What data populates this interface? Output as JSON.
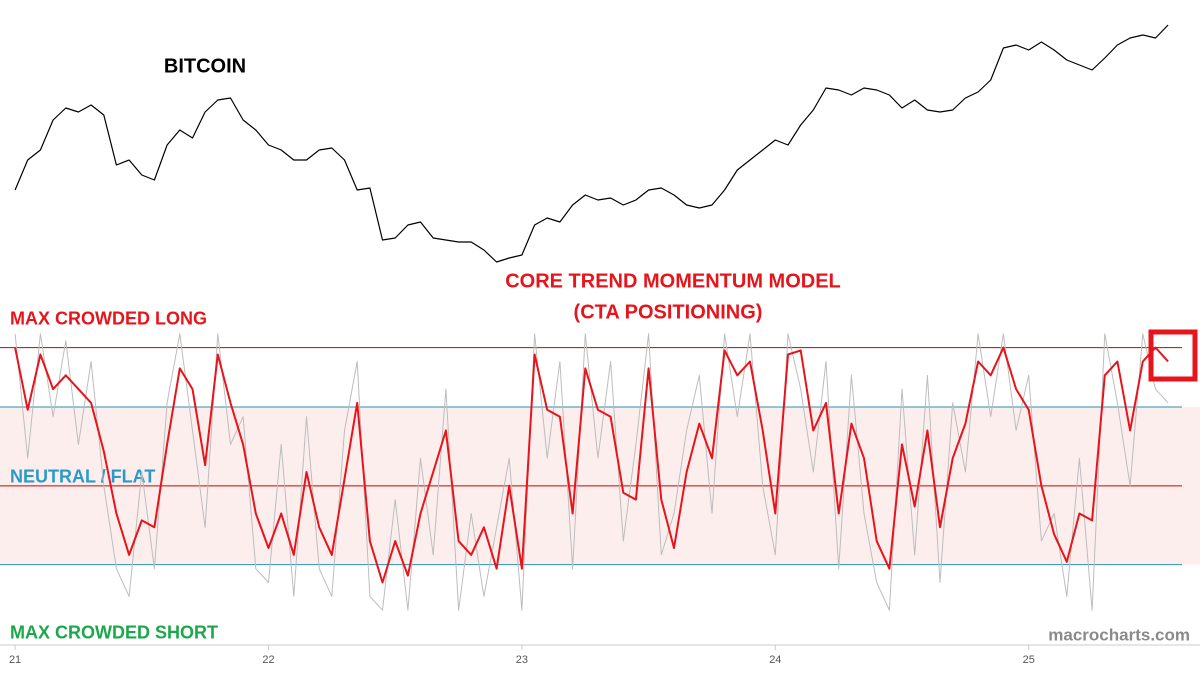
{
  "chart_data": [
    {
      "type": "line",
      "title": "BITCOIN",
      "color": "#000000",
      "xlim": [
        20.98,
        25.66
      ],
      "ylim": [
        0,
        250
      ],
      "x": [
        21,
        21.05,
        21.1,
        21.15,
        21.2,
        21.25,
        21.3,
        21.35,
        21.4,
        21.45,
        21.5,
        21.55,
        21.6,
        21.65,
        21.7,
        21.75,
        21.8,
        21.85,
        21.9,
        21.95,
        22,
        22.05,
        22.1,
        22.15,
        22.2,
        22.25,
        22.3,
        22.35,
        22.4,
        22.45,
        22.5,
        22.55,
        22.6,
        22.65,
        22.7,
        22.75,
        22.8,
        22.85,
        22.9,
        22.95,
        23,
        23.05,
        23.1,
        23.15,
        23.2,
        23.25,
        23.3,
        23.35,
        23.4,
        23.45,
        23.5,
        23.55,
        23.6,
        23.65,
        23.7,
        23.75,
        23.8,
        23.85,
        23.9,
        23.95,
        24,
        24.05,
        24.1,
        24.15,
        24.2,
        24.25,
        24.3,
        24.35,
        24.4,
        24.45,
        24.5,
        24.55,
        24.6,
        24.65,
        24.7,
        24.75,
        24.8,
        24.85,
        24.9,
        24.95,
        25,
        25.05,
        25.1,
        25.15,
        25.2,
        25.25,
        25.3,
        25.35,
        25.4,
        25.45,
        25.5,
        25.55
      ],
      "values": [
        80,
        110,
        120,
        150,
        162,
        158,
        165,
        155,
        105,
        110,
        95,
        90,
        125,
        140,
        132,
        158,
        170,
        172,
        150,
        140,
        125,
        120,
        110,
        110,
        120,
        122,
        110,
        80,
        82,
        30,
        32,
        45,
        48,
        32,
        30,
        28,
        28,
        20,
        8,
        12,
        15,
        45,
        52,
        48,
        65,
        75,
        70,
        72,
        65,
        70,
        80,
        82,
        75,
        65,
        62,
        65,
        80,
        100,
        110,
        120,
        130,
        125,
        145,
        160,
        182,
        180,
        175,
        182,
        180,
        175,
        162,
        170,
        160,
        158,
        160,
        172,
        178,
        190,
        222,
        225,
        220,
        228,
        220,
        210,
        205,
        200,
        212,
        225,
        232,
        235,
        232,
        245
      ]
    },
    {
      "type": "line",
      "title": "CORE TREND MOMENTUM MODEL",
      "subtitle": "(CTA POSITIONING)",
      "xlim": [
        20.98,
        25.66
      ],
      "ylim": [
        -1,
        1.2
      ],
      "xticks": [
        21,
        22,
        23,
        24,
        25
      ],
      "band": {
        "range": [
          -0.57,
          0.57
        ],
        "color": "#fdeeee"
      },
      "reference_lines": [
        {
          "value": 1,
          "color": "#cc0000",
          "label": "MAX CROWDED LONG",
          "label_color": "#e8141b"
        },
        {
          "value": 0.57,
          "color": "#2a8fb5"
        },
        {
          "value": 0,
          "color": "#cc0000",
          "label": "NEUTRAL / FLAT",
          "label_color": "#2a9bc8"
        },
        {
          "value": -0.57,
          "color": "#2a8fb5",
          "label": "MAX CROWDED SHORT",
          "label_color": "#1aa84a"
        }
      ],
      "x": [
        21,
        21.05,
        21.1,
        21.15,
        21.2,
        21.25,
        21.3,
        21.35,
        21.4,
        21.45,
        21.5,
        21.55,
        21.6,
        21.65,
        21.7,
        21.75,
        21.8,
        21.85,
        21.9,
        21.95,
        22,
        22.05,
        22.1,
        22.15,
        22.2,
        22.25,
        22.3,
        22.35,
        22.4,
        22.45,
        22.5,
        22.55,
        22.6,
        22.65,
        22.7,
        22.75,
        22.8,
        22.85,
        22.9,
        22.95,
        23,
        23.05,
        23.1,
        23.15,
        23.2,
        23.25,
        23.3,
        23.35,
        23.4,
        23.45,
        23.5,
        23.55,
        23.6,
        23.65,
        23.7,
        23.75,
        23.8,
        23.85,
        23.9,
        23.95,
        24,
        24.05,
        24.1,
        24.15,
        24.2,
        24.25,
        24.3,
        24.35,
        24.4,
        24.45,
        24.5,
        24.55,
        24.6,
        24.65,
        24.7,
        24.75,
        24.8,
        24.85,
        24.9,
        24.95,
        25,
        25.05,
        25.1,
        25.15,
        25.2,
        25.25,
        25.3,
        25.35,
        25.4,
        25.45,
        25.5,
        25.55
      ],
      "series": [
        {
          "color": "#bdbdbd",
          "width": 1,
          "values": [
            1.1,
            0.2,
            1.1,
            0.5,
            1.05,
            0.3,
            0.9,
            0.0,
            -0.6,
            -0.8,
            0.1,
            -0.6,
            0.6,
            1.1,
            0.4,
            -0.3,
            1.1,
            0.3,
            0.5,
            -0.6,
            -0.7,
            0.3,
            -0.8,
            0.5,
            -0.6,
            -0.8,
            0.4,
            0.9,
            -0.8,
            -0.9,
            -0.1,
            -0.9,
            0.2,
            -0.5,
            0.7,
            -0.9,
            -0.2,
            -0.8,
            -0.3,
            0.2,
            -0.9,
            1.1,
            0.2,
            0.9,
            -0.6,
            1.1,
            0.2,
            0.9,
            -0.4,
            0.3,
            1.1,
            -0.5,
            -0.2,
            0.4,
            0.8,
            -0.2,
            1.1,
            0.5,
            1.1,
            0.0,
            -0.5,
            1.1,
            0.7,
            0.1,
            0.9,
            -0.6,
            0.8,
            -0.2,
            -0.7,
            -0.9,
            0.7,
            -0.5,
            0.8,
            -0.7,
            0.6,
            0.1,
            1.1,
            0.5,
            1.1,
            0.4,
            0.8,
            -0.4,
            -0.2,
            -0.8,
            0.2,
            -0.9,
            1.1,
            0.6,
            0.0,
            1.1,
            0.7,
            0.6
          ]
        },
        {
          "color": "#e8141b",
          "width": 2,
          "values": [
            1.0,
            0.55,
            0.95,
            0.7,
            0.8,
            0.7,
            0.6,
            0.25,
            -0.2,
            -0.5,
            -0.25,
            -0.3,
            0.3,
            0.85,
            0.7,
            0.15,
            0.95,
            0.6,
            0.3,
            -0.2,
            -0.45,
            -0.2,
            -0.5,
            0.1,
            -0.3,
            -0.5,
            0.05,
            0.6,
            -0.4,
            -0.7,
            -0.4,
            -0.65,
            -0.2,
            0.1,
            0.4,
            -0.4,
            -0.5,
            -0.3,
            -0.6,
            0.0,
            -0.6,
            0.95,
            0.55,
            0.5,
            -0.2,
            0.85,
            0.55,
            0.5,
            -0.05,
            -0.1,
            0.85,
            -0.1,
            -0.45,
            0.1,
            0.45,
            0.2,
            0.98,
            0.8,
            0.9,
            0.4,
            -0.2,
            0.95,
            0.98,
            0.4,
            0.6,
            -0.2,
            0.45,
            0.2,
            -0.4,
            -0.6,
            0.3,
            -0.15,
            0.4,
            -0.3,
            0.2,
            0.45,
            0.9,
            0.8,
            1.0,
            0.7,
            0.55,
            0.0,
            -0.35,
            -0.55,
            -0.2,
            -0.25,
            0.8,
            0.9,
            0.4,
            0.9,
            1.0,
            0.9
          ]
        }
      ]
    }
  ],
  "source": "macrocharts.com"
}
